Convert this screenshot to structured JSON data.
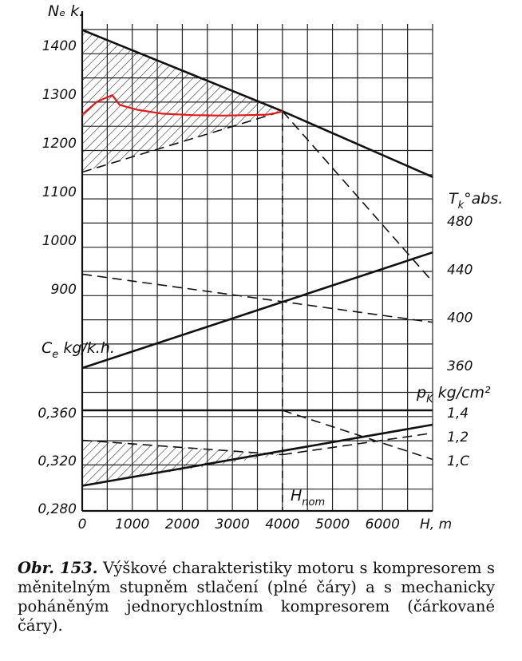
{
  "chart_data": {
    "type": "line",
    "x_axis": {
      "label": "H, m",
      "ticks": [
        "0",
        "1000",
        "2000",
        "3000",
        "4000",
        "5000",
        "6000"
      ],
      "range": [
        0,
        7000
      ]
    },
    "panels": {
      "power": {
        "label": "Nₑ k.",
        "ticks": [
          "1100",
          "1200",
          "1300",
          "1400"
        ],
        "ticks_lower": [
          "900",
          "1000"
        ],
        "range": [
          850,
          1450
        ]
      },
      "temperature": {
        "label_main": "T",
        "label_sub": "k",
        "label_rest": "°abs.",
        "ticks": [
          "360",
          "400",
          "440",
          "480"
        ],
        "range": [
          340,
          500
        ]
      },
      "fuel_consumption": {
        "label_main": "C",
        "label_sub": "e",
        "label_rest": " kg/k.h.",
        "ticks": [
          "0,280",
          "0,320",
          "0,360"
        ],
        "range": [
          0.26,
          0.4
        ]
      },
      "pressure": {
        "label_main": "p",
        "label_sub": "K",
        "label_rest": " kg/cm²",
        "ticks": [
          "1,C",
          "1,2",
          "1,4"
        ],
        "range": [
          0.9,
          1.6
        ]
      }
    },
    "series": [
      {
        "panel": "power",
        "style": "solid",
        "x": [
          0,
          4000,
          7000
        ],
        "y": [
          1432,
          1265,
          1130
        ]
      },
      {
        "panel": "power",
        "style": "dashed",
        "x": [
          0,
          4000
        ],
        "y": [
          1140,
          1265
        ]
      },
      {
        "panel": "power",
        "style": "dashed",
        "x": [
          4000,
          7000
        ],
        "y": [
          1265,
          915
        ]
      },
      {
        "panel": "power",
        "style": "red",
        "x": [
          0,
          300,
          600,
          750,
          1100,
          1600,
          2200,
          2800,
          3300,
          3700,
          3900,
          4000
        ],
        "y": [
          1258,
          1285,
          1298,
          1278,
          1268,
          1260,
          1257,
          1256,
          1257,
          1258,
          1262,
          1265
        ]
      },
      {
        "panel": "temperature",
        "style": "solid",
        "x": [
          0,
          7000
        ],
        "y": [
          358,
          454
        ]
      },
      {
        "panel": "temperature",
        "style": "dashed",
        "x": [
          0,
          7000
        ],
        "y": [
          436,
          396
        ]
      },
      {
        "panel": "fuel_consumption",
        "style": "solid",
        "x": [
          0,
          7000
        ],
        "y": [
          0.299,
          0.35
        ]
      },
      {
        "panel": "fuel_consumption",
        "style": "dashed",
        "x": [
          0,
          4000
        ],
        "y": [
          0.337,
          0.325
        ]
      },
      {
        "panel": "fuel_consumption",
        "style": "dashed",
        "x": [
          4000,
          7000
        ],
        "y": [
          0.325,
          0.343
        ]
      },
      {
        "panel": "pressure",
        "style": "solid",
        "x": [
          0,
          7000
        ],
        "y": [
          1.42,
          1.42
        ]
      },
      {
        "panel": "pressure",
        "style": "dashed",
        "x": [
          4000,
          7000
        ],
        "y": [
          1.42,
          1.01
        ]
      }
    ],
    "annotations": {
      "h_nom_main": "H",
      "h_nom_sub": "nom"
    }
  },
  "caption": {
    "lead": "Obr. 153.",
    "text": " Výškové charakteristiky motoru s kompresorem s měnitelným stupněm stlačení (plné čáry) a s mechanicky poháněným jednorychlostním kompresorem (čárkované čáry)."
  }
}
